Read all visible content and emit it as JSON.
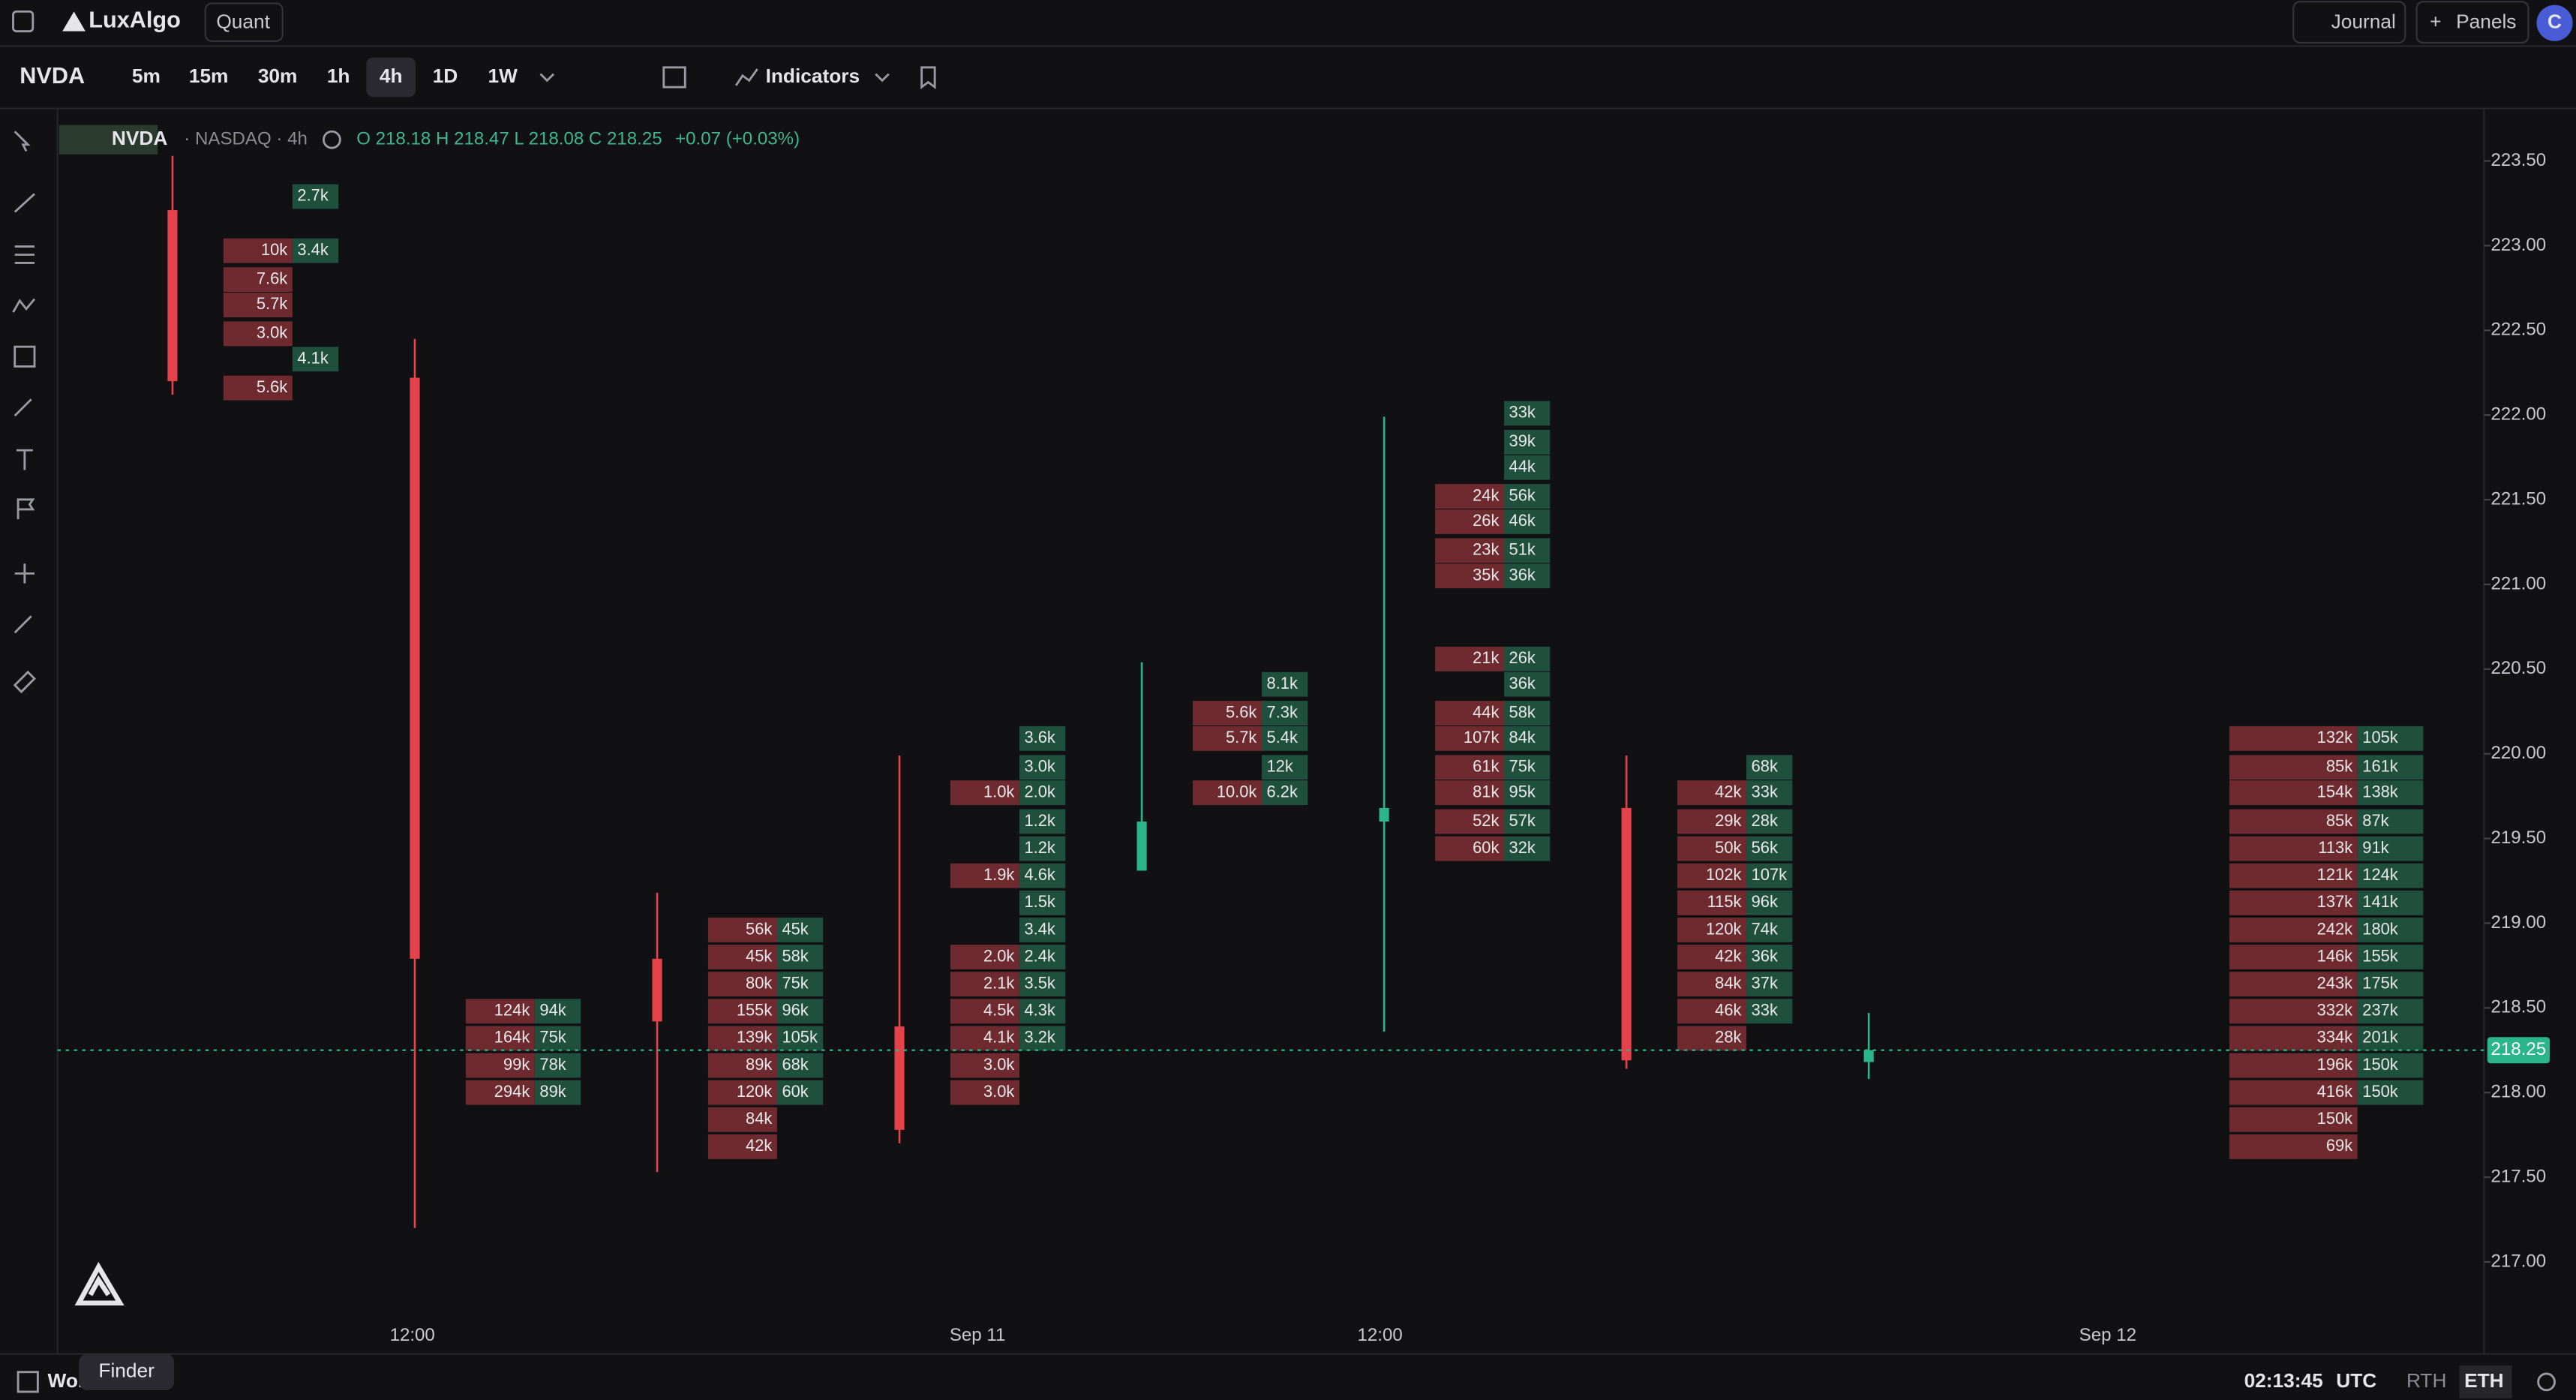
{
  "header": {
    "logo": "LuxAlgo",
    "workspace": "Quant",
    "journal": "Journal",
    "panels": "Panels",
    "avatar": "C"
  },
  "toolbar": {
    "symbol": "NVDA",
    "timeframes": [
      "5m",
      "15m",
      "30m",
      "1h",
      "4h",
      "1D",
      "1W"
    ],
    "active": "4h",
    "indicators": "Indicators"
  },
  "legend": {
    "symbol": "NVDA",
    "exchange": "· NASDAQ · 4h",
    "ohlc": "O 218.18 H 218.47 L 218.08 C 218.25",
    "change": "+0.07 (+0.03%)"
  },
  "chart_data": {
    "type": "candlestick",
    "ylim": [
      216.67,
      223.81
    ],
    "yticks": [
      {
        "value": 217,
        "label": "217.00"
      },
      {
        "value": 217.5,
        "label": "217.50"
      },
      {
        "value": 218,
        "label": "218.00"
      },
      {
        "value": 218.5,
        "label": "218.50"
      },
      {
        "value": 219,
        "label": "219.00"
      },
      {
        "value": 219.5,
        "label": "219.50"
      },
      {
        "value": 220,
        "label": "220.00"
      },
      {
        "value": 220.5,
        "label": "220.50"
      },
      {
        "value": 221,
        "label": "221.00"
      },
      {
        "value": 221.5,
        "label": "221.50"
      },
      {
        "value": 222,
        "label": "222.00"
      },
      {
        "value": 222.5,
        "label": "222.50"
      },
      {
        "value": 223,
        "label": "223.00"
      },
      {
        "value": 223.5,
        "label": "223.50"
      }
    ],
    "last_price": {
      "value": 218.25,
      "label": "218.25"
    },
    "time_labels": [
      "12:00",
      "Sep 11",
      "12:00",
      "Sep 12"
    ],
    "candles": [
      {
        "open": 223.21,
        "high": 223.53,
        "low": 222.12,
        "close": 222.2,
        "footprint": [
          {
            "price": 223.29,
            "sell": null,
            "buy": "2.7k"
          },
          {
            "price": 222.97,
            "sell": "10k",
            "buy": "3.4k"
          },
          {
            "price": 222.8,
            "sell": "7.6k",
            "buy": null
          },
          {
            "price": 222.65,
            "sell": "5.7k",
            "buy": null
          },
          {
            "price": 222.48,
            "sell": "3.0k",
            "buy": null
          },
          {
            "price": 222.33,
            "sell": null,
            "buy": "4.1k"
          },
          {
            "price": 222.16,
            "sell": "5.6k",
            "buy": null
          }
        ]
      },
      {
        "open": 222.22,
        "high": 222.45,
        "low": 217.2,
        "close": 218.79,
        "footprint": [
          {
            "price": 218.48,
            "sell": "124k",
            "buy": "94k"
          },
          {
            "price": 218.32,
            "sell": "164k",
            "buy": "75k"
          },
          {
            "price": 218.16,
            "sell": "99k",
            "buy": "78k"
          },
          {
            "price": 218.0,
            "sell": "294k",
            "buy": "89k"
          }
        ]
      },
      {
        "open": 218.79,
        "high": 219.18,
        "low": 217.53,
        "close": 218.42,
        "footprint": [
          {
            "price": 218.96,
            "sell": "56k",
            "buy": "45k"
          },
          {
            "price": 218.8,
            "sell": "45k",
            "buy": "58k"
          },
          {
            "price": 218.64,
            "sell": "80k",
            "buy": "75k"
          },
          {
            "price": 218.48,
            "sell": "155k",
            "buy": "96k"
          },
          {
            "price": 218.32,
            "sell": "139k",
            "buy": "105k"
          },
          {
            "price": 218.16,
            "sell": "89k",
            "buy": "68k"
          },
          {
            "price": 218.0,
            "sell": "120k",
            "buy": "60k"
          },
          {
            "price": 217.84,
            "sell": "84k",
            "buy": null
          },
          {
            "price": 217.68,
            "sell": "42k",
            "buy": null
          }
        ]
      },
      {
        "open": 218.39,
        "high": 219.99,
        "low": 217.7,
        "close": 217.78,
        "footprint": [
          {
            "price": 220.09,
            "sell": null,
            "buy": "3.6k"
          },
          {
            "price": 219.92,
            "sell": null,
            "buy": "3.0k"
          },
          {
            "price": 219.77,
            "sell": "1.0k",
            "buy": "2.0k"
          },
          {
            "price": 219.6,
            "sell": null,
            "buy": "1.2k"
          },
          {
            "price": 219.44,
            "sell": null,
            "buy": "1.2k"
          },
          {
            "price": 219.28,
            "sell": "1.9k",
            "buy": "4.6k"
          },
          {
            "price": 219.12,
            "sell": null,
            "buy": "1.5k"
          },
          {
            "price": 218.96,
            "sell": null,
            "buy": "3.4k"
          },
          {
            "price": 218.8,
            "sell": "2.0k",
            "buy": "2.4k"
          },
          {
            "price": 218.64,
            "sell": "2.1k",
            "buy": "3.5k"
          },
          {
            "price": 218.48,
            "sell": "4.5k",
            "buy": "4.3k"
          },
          {
            "price": 218.32,
            "sell": "4.1k",
            "buy": "3.2k"
          },
          {
            "price": 218.16,
            "sell": "3.0k",
            "buy": null
          },
          {
            "price": 218.0,
            "sell": "3.0k",
            "buy": null
          }
        ]
      },
      {
        "open": 219.31,
        "high": 220.54,
        "low": 219.31,
        "close": 219.6,
        "footprint": [
          {
            "price": 220.41,
            "sell": null,
            "buy": "8.1k"
          },
          {
            "price": 220.24,
            "sell": "5.6k",
            "buy": "7.3k"
          },
          {
            "price": 220.09,
            "sell": "5.7k",
            "buy": "5.4k"
          },
          {
            "price": 219.92,
            "sell": null,
            "buy": "12k"
          },
          {
            "price": 219.77,
            "sell": "10.0k",
            "buy": "6.2k"
          }
        ]
      },
      {
        "open": 219.6,
        "high": 221.99,
        "low": 218.36,
        "close": 219.68,
        "footprint": [
          {
            "price": 222.01,
            "sell": null,
            "buy": "33k"
          },
          {
            "price": 221.84,
            "sell": null,
            "buy": "39k"
          },
          {
            "price": 221.69,
            "sell": null,
            "buy": "44k"
          },
          {
            "price": 221.52,
            "sell": "24k",
            "buy": "56k"
          },
          {
            "price": 221.37,
            "sell": "26k",
            "buy": "46k"
          },
          {
            "price": 221.2,
            "sell": "23k",
            "buy": "51k"
          },
          {
            "price": 221.05,
            "sell": "35k",
            "buy": "36k"
          },
          {
            "price": 220.56,
            "sell": "21k",
            "buy": "26k"
          },
          {
            "price": 220.41,
            "sell": null,
            "buy": "36k"
          },
          {
            "price": 220.24,
            "sell": "44k",
            "buy": "58k"
          },
          {
            "price": 220.09,
            "sell": "107k",
            "buy": "84k"
          },
          {
            "price": 219.92,
            "sell": "61k",
            "buy": "75k"
          },
          {
            "price": 219.77,
            "sell": "81k",
            "buy": "95k"
          },
          {
            "price": 219.6,
            "sell": "52k",
            "buy": "57k"
          },
          {
            "price": 219.44,
            "sell": "60k",
            "buy": "32k"
          }
        ]
      },
      {
        "open": 219.68,
        "high": 219.99,
        "low": 218.14,
        "close": 218.19,
        "footprint": [
          {
            "price": 219.92,
            "sell": null,
            "buy": "68k"
          },
          {
            "price": 219.77,
            "sell": "42k",
            "buy": "33k"
          },
          {
            "price": 219.6,
            "sell": "29k",
            "buy": "28k"
          },
          {
            "price": 219.44,
            "sell": "50k",
            "buy": "56k"
          },
          {
            "price": 219.28,
            "sell": "102k",
            "buy": "107k"
          },
          {
            "price": 219.12,
            "sell": "115k",
            "buy": "96k"
          },
          {
            "price": 218.96,
            "sell": "120k",
            "buy": "74k"
          },
          {
            "price": 218.8,
            "sell": "42k",
            "buy": "36k"
          },
          {
            "price": 218.64,
            "sell": "84k",
            "buy": "37k"
          },
          {
            "price": 218.48,
            "sell": "46k",
            "buy": "33k"
          },
          {
            "price": 218.32,
            "sell": "28k",
            "buy": null
          }
        ]
      },
      {
        "open": 218.18,
        "high": 218.47,
        "low": 218.08,
        "close": 218.25,
        "footprint": []
      }
    ],
    "session_profile": [
      {
        "price": 220.09,
        "sell": "132k",
        "buy": "105k"
      },
      {
        "price": 219.92,
        "sell": "85k",
        "buy": "161k"
      },
      {
        "price": 219.77,
        "sell": "154k",
        "buy": "138k"
      },
      {
        "price": 219.6,
        "sell": "85k",
        "buy": "87k"
      },
      {
        "price": 219.44,
        "sell": "113k",
        "buy": "91k"
      },
      {
        "price": 219.28,
        "sell": "121k",
        "buy": "124k"
      },
      {
        "price": 219.12,
        "sell": "137k",
        "buy": "141k"
      },
      {
        "price": 218.96,
        "sell": "242k",
        "buy": "180k"
      },
      {
        "price": 218.8,
        "sell": "146k",
        "buy": "155k"
      },
      {
        "price": 218.64,
        "sell": "243k",
        "buy": "175k"
      },
      {
        "price": 218.48,
        "sell": "332k",
        "buy": "237k"
      },
      {
        "price": 218.32,
        "sell": "334k",
        "buy": "201k"
      },
      {
        "price": 218.16,
        "sell": "196k",
        "buy": "150k"
      },
      {
        "price": 218.0,
        "sell": "416k",
        "buy": "150k"
      },
      {
        "price": 217.84,
        "sell": "150k",
        "buy": null
      },
      {
        "price": 217.68,
        "sell": "69k",
        "buy": null
      }
    ]
  },
  "footer": {
    "workspace": "Wor",
    "finder": "Finder",
    "time": "02:13:45",
    "timezone": "UTC",
    "sessions": [
      "RTH",
      "ETH"
    ]
  }
}
